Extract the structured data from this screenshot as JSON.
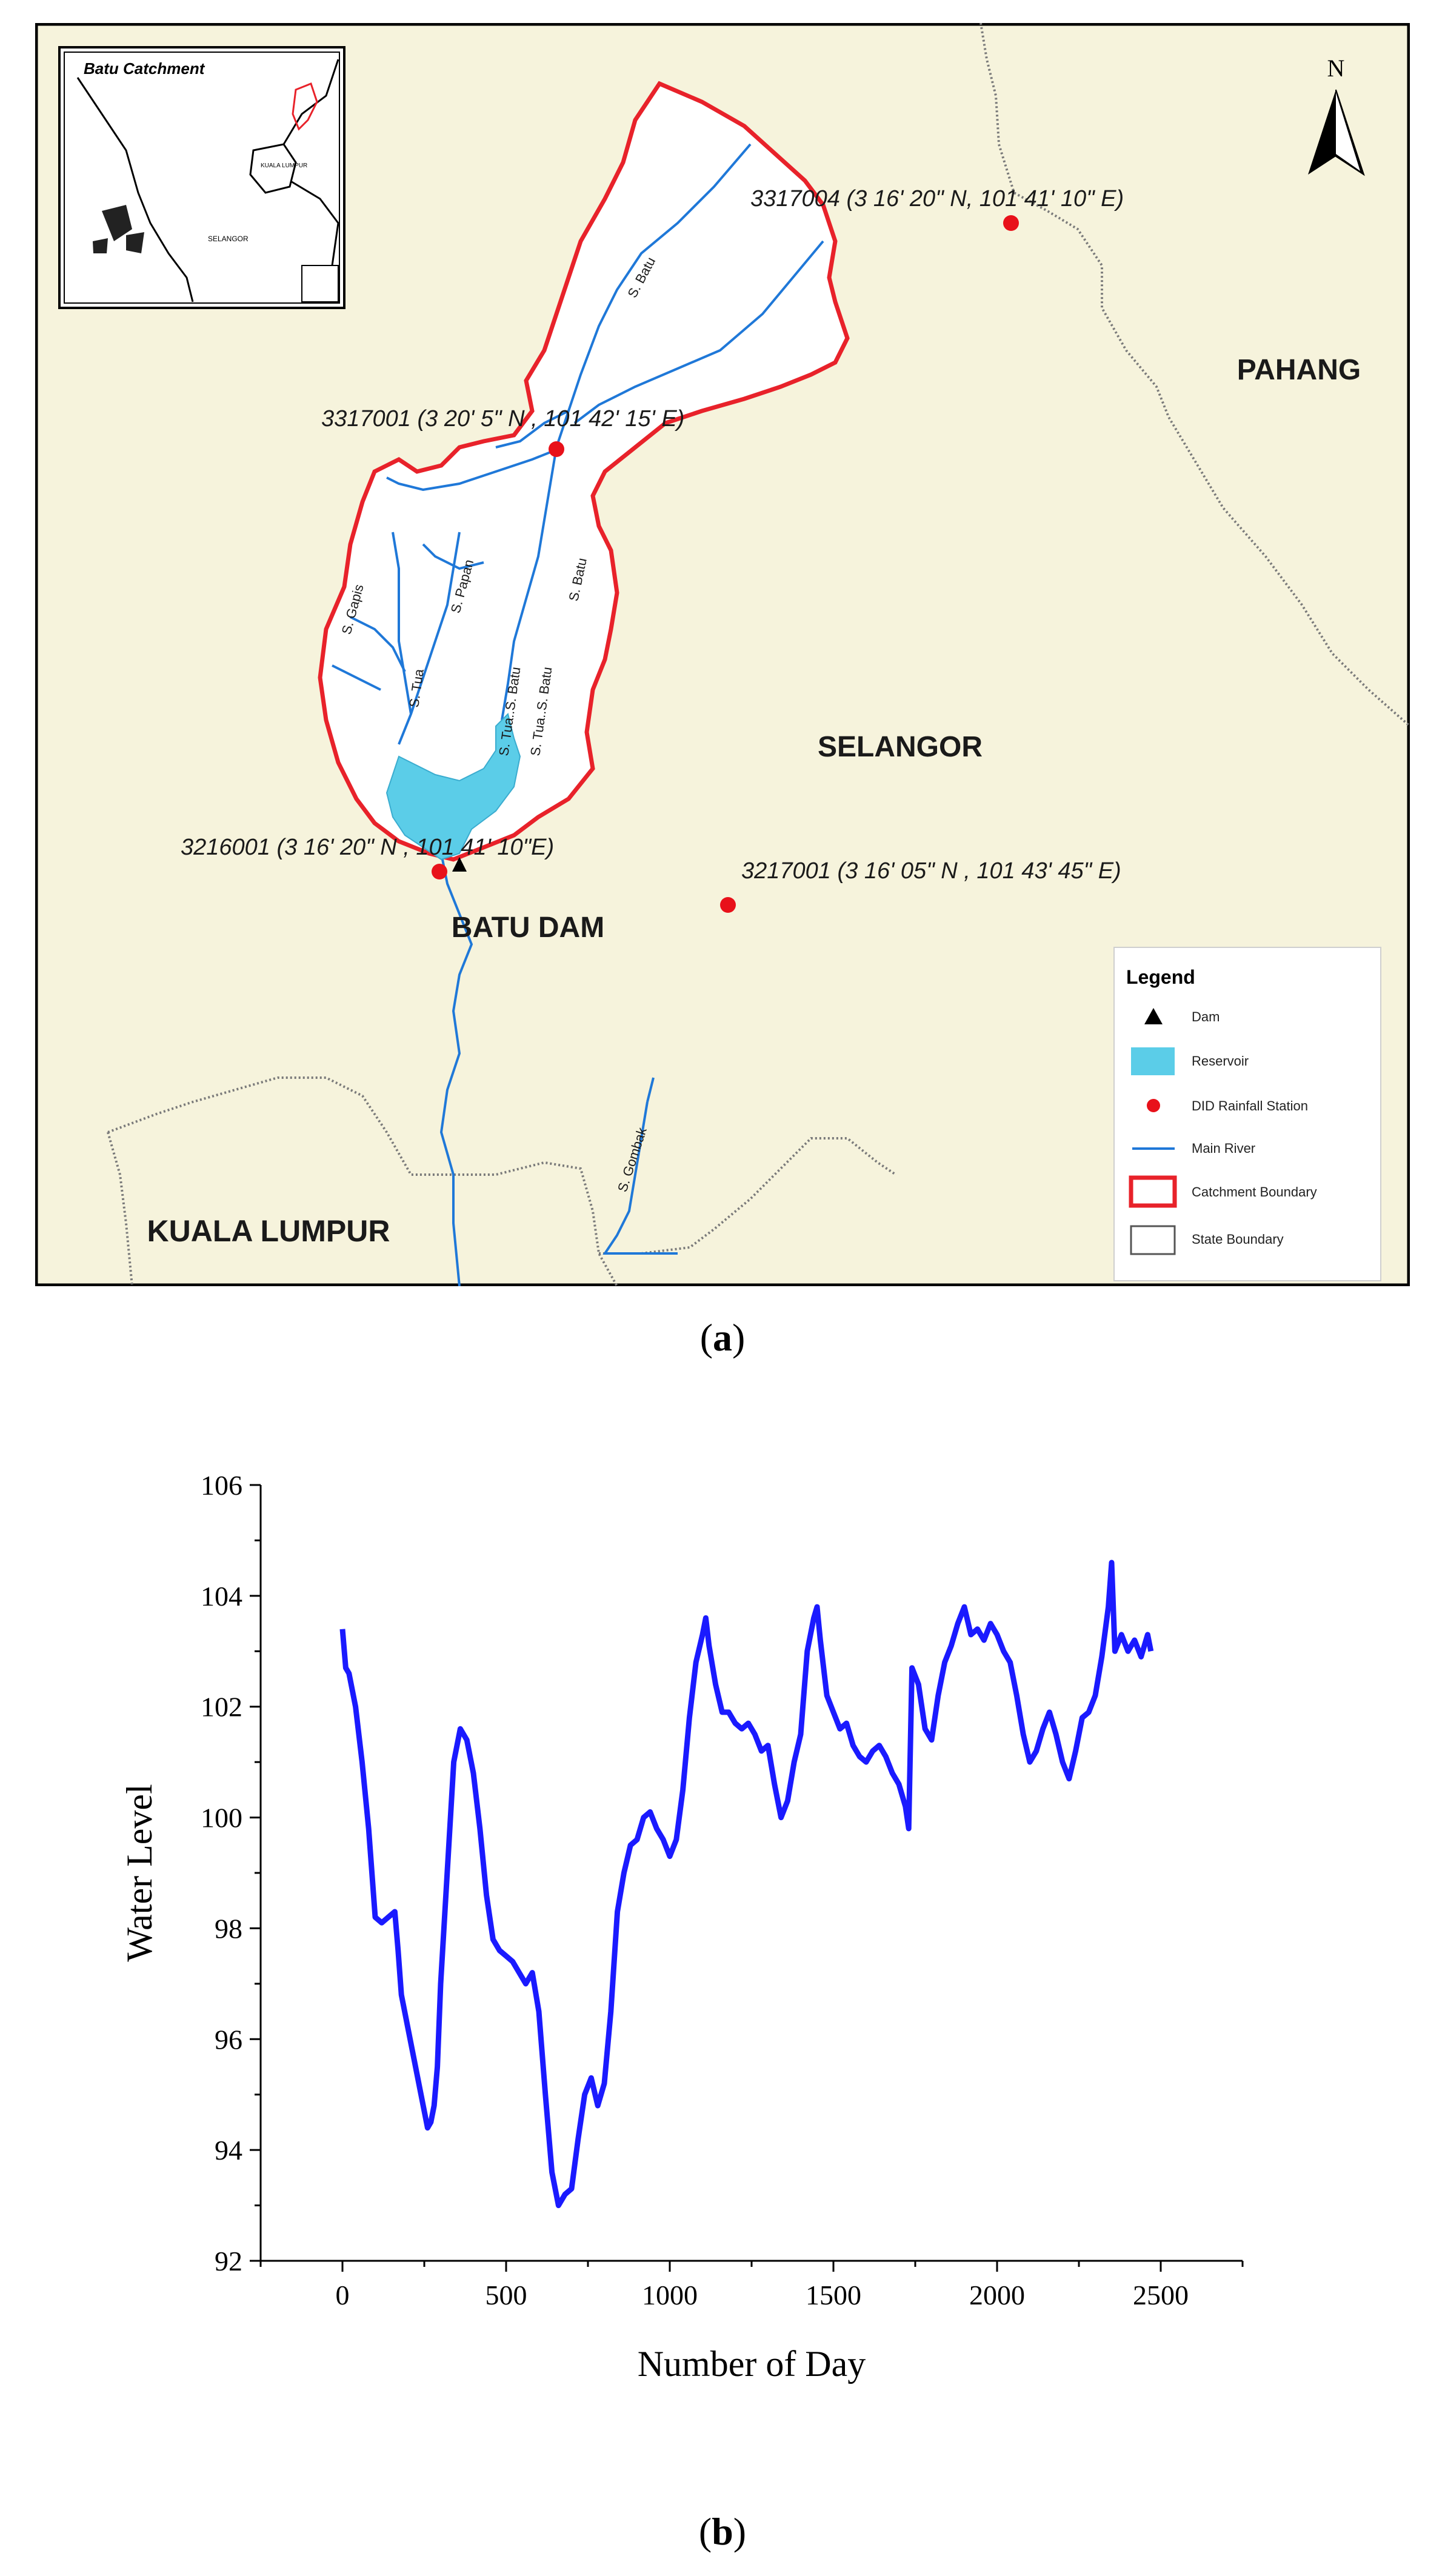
{
  "figure_a": {
    "caption_letter": "a",
    "inset": {
      "title": "Batu Catchment",
      "kl_label": "KUALA LUMPUR",
      "selangor_label": "SELANGOR"
    },
    "north_label": "N",
    "regions": {
      "pahang": "PAHANG",
      "selangor": "SELANGOR",
      "kuala_lumpur": "KUALA LUMPUR"
    },
    "dam_label": "BATU DAM",
    "stations": [
      {
        "id": "3317004",
        "label": "3317004 (3  16' 20\" N, 101  41' 10\" E)"
      },
      {
        "id": "3317001",
        "label": "3317001 (3  20' 5\" N , 101  42' 15' E)"
      },
      {
        "id": "3216001",
        "label": "3216001 (3  16' 20\" N , 101  41' 10\"E)"
      },
      {
        "id": "3217001",
        "label": "3217001 (3  16' 05\" N , 101  43' 45\" E)"
      }
    ],
    "rivers": {
      "s_batu_upper": "S. Batu",
      "s_batu_mid": "S. Batu",
      "s_papan": "S. Papan",
      "s_gapis": "S. Gapis",
      "s_tua": "S. Tua",
      "s_tua_s_batu_1": "S. Tua..S. Batu",
      "s_tua_s_batu_2": "S. Tua..S. Batu",
      "s_gombak": "S. Gombak"
    },
    "legend": {
      "title": "Legend",
      "items": [
        {
          "label": "Dam",
          "symbol": "triangle"
        },
        {
          "label": "Reservoir",
          "symbol": "fill"
        },
        {
          "label": "DID Rainfall Station",
          "symbol": "dot"
        },
        {
          "label": "Main River",
          "symbol": "line"
        },
        {
          "label": "Catchment Boundary",
          "symbol": "red-box"
        },
        {
          "label": "State Boundary",
          "symbol": "grey-box"
        }
      ]
    },
    "colors": {
      "background": "#f6f3dc",
      "river": "#1f78d8",
      "reservoir": "#5bcde8",
      "catchment": "#e8222a",
      "station": "#e8111a",
      "state_boundary": "#7a7a7a"
    }
  },
  "figure_b": {
    "caption_letter": "b",
    "chart_data": {
      "type": "line",
      "xlabel": "Number of Day",
      "ylabel": "Water Level",
      "xlim": [
        -250,
        2750
      ],
      "ylim": [
        92,
        106
      ],
      "xticks": [
        0,
        500,
        1000,
        1500,
        2000,
        2500
      ],
      "yticks": [
        92,
        94,
        96,
        98,
        100,
        102,
        104,
        106
      ],
      "grid": false,
      "series": [
        {
          "color": "#1a1aff",
          "x": [
            0,
            10,
            20,
            40,
            60,
            80,
            100,
            120,
            140,
            160,
            170,
            180,
            200,
            220,
            240,
            260,
            270,
            280,
            290,
            300,
            320,
            340,
            360,
            380,
            400,
            420,
            440,
            460,
            480,
            500,
            520,
            540,
            560,
            580,
            600,
            620,
            640,
            660,
            680,
            700,
            720,
            740,
            760,
            780,
            800,
            820,
            840,
            860,
            880,
            900,
            920,
            940,
            960,
            980,
            1000,
            1020,
            1040,
            1060,
            1080,
            1100,
            1110,
            1120,
            1140,
            1160,
            1180,
            1200,
            1220,
            1240,
            1260,
            1280,
            1300,
            1320,
            1340,
            1360,
            1380,
            1400,
            1420,
            1440,
            1450,
            1460,
            1480,
            1500,
            1520,
            1540,
            1560,
            1580,
            1600,
            1620,
            1640,
            1660,
            1680,
            1700,
            1720,
            1730,
            1740,
            1760,
            1780,
            1800,
            1820,
            1840,
            1860,
            1880,
            1900,
            1920,
            1940,
            1960,
            1980,
            2000,
            2020,
            2040,
            2060,
            2080,
            2100,
            2120,
            2140,
            2160,
            2180,
            2200,
            2220,
            2240,
            2260,
            2280,
            2300,
            2320,
            2340,
            2350,
            2360,
            2380,
            2400,
            2420,
            2440,
            2460,
            2470
          ],
          "y": [
            103.4,
            102.7,
            102.6,
            102.0,
            101.0,
            99.8,
            98.2,
            98.1,
            98.2,
            98.3,
            97.6,
            96.8,
            96.2,
            95.6,
            95.0,
            94.4,
            94.5,
            94.8,
            95.5,
            97.0,
            99.0,
            101.0,
            101.6,
            101.4,
            100.8,
            99.8,
            98.6,
            97.8,
            97.6,
            97.5,
            97.4,
            97.2,
            97.0,
            97.2,
            96.5,
            95.0,
            93.6,
            93.0,
            93.2,
            93.3,
            94.2,
            95.0,
            95.3,
            94.8,
            95.2,
            96.5,
            98.3,
            99.0,
            99.5,
            99.6,
            100.0,
            100.1,
            99.8,
            99.6,
            99.3,
            99.6,
            100.5,
            101.8,
            102.8,
            103.3,
            103.6,
            103.1,
            102.4,
            101.9,
            101.9,
            101.7,
            101.6,
            101.7,
            101.5,
            101.2,
            101.3,
            100.6,
            100.0,
            100.3,
            101.0,
            101.5,
            103.0,
            103.6,
            103.8,
            103.2,
            102.2,
            101.9,
            101.6,
            101.7,
            101.3,
            101.1,
            101.0,
            101.2,
            101.3,
            101.1,
            100.8,
            100.6,
            100.2,
            99.8,
            102.7,
            102.4,
            101.6,
            101.4,
            102.2,
            102.8,
            103.1,
            103.5,
            103.8,
            103.3,
            103.4,
            103.2,
            103.5,
            103.3,
            103.0,
            102.8,
            102.2,
            101.5,
            101.0,
            101.2,
            101.6,
            101.9,
            101.5,
            101.0,
            100.7,
            101.2,
            101.8,
            101.9,
            102.2,
            102.9,
            103.8,
            104.6,
            103.0,
            103.3,
            103.0,
            103.2,
            102.9,
            103.3,
            103.0
          ]
        }
      ]
    }
  }
}
